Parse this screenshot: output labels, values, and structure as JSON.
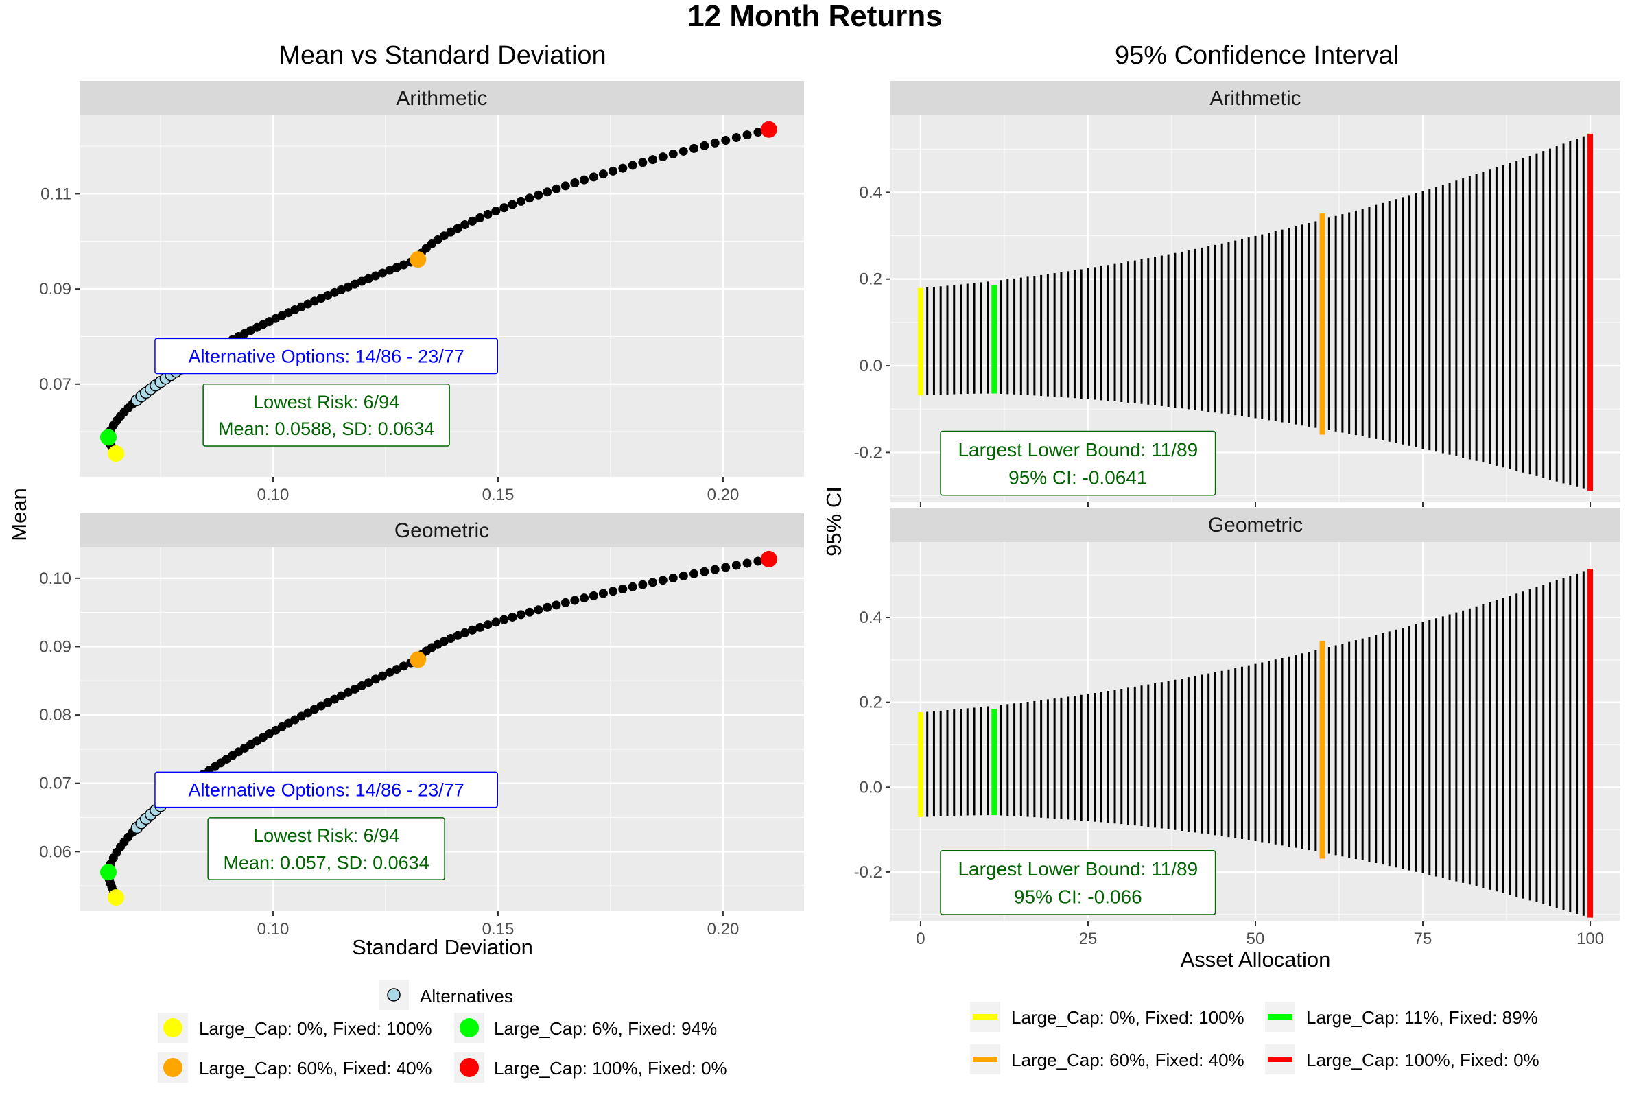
{
  "title": "12 Month Returns",
  "left": {
    "title": "Mean vs Standard Deviation",
    "xlabel": "Standard Deviation",
    "ylabel": "Mean",
    "legend": {
      "alternatives": "Alternatives",
      "items": [
        {
          "label": "Large_Cap: 0%,  Fixed: 100%",
          "color": "#ffff00"
        },
        {
          "label": "Large_Cap: 6%,  Fixed: 94%",
          "color": "#00ff00"
        },
        {
          "label": "Large_Cap: 60%,  Fixed: 40%",
          "color": "#ffa500"
        },
        {
          "label": "Large_Cap: 100%,  Fixed: 0%",
          "color": "#ff0000"
        }
      ]
    }
  },
  "right": {
    "title": "95% Confidence Interval",
    "xlabel": "Asset Allocation",
    "ylabel": "95% CI",
    "legend": {
      "items": [
        {
          "label": "Large_Cap: 0%,  Fixed: 100%",
          "color": "#ffff00"
        },
        {
          "label": "Large_Cap: 11%,  Fixed: 89%",
          "color": "#00ff00"
        },
        {
          "label": "Large_Cap: 60%,  Fixed: 40%",
          "color": "#ffa500"
        },
        {
          "label": "Large_Cap: 100%,  Fixed: 0%",
          "color": "#ff0000"
        }
      ]
    }
  },
  "chart_data": [
    {
      "type": "scatter",
      "panel": "Arithmetic",
      "title": "Mean vs Standard Deviation",
      "xlabel": "Standard Deviation",
      "ylabel": "Mean",
      "xlim": [
        0.057,
        0.218
      ],
      "ylim": [
        0.0505,
        0.1265
      ],
      "xticks": [
        "0.10",
        "0.15",
        "0.20"
      ],
      "yticks": [
        "0.07",
        "0.09",
        "0.11"
      ],
      "curve": {
        "allocations": [
          0,
          100
        ],
        "sd_start": 0.0651,
        "sd_min": 0.0634,
        "sd_end": 0.2102,
        "mean_start": 0.0554,
        "mean_end": 0.1235
      },
      "highlights": [
        {
          "allocation": 0,
          "sd": 0.0651,
          "mean": 0.0554,
          "color": "#ffff00"
        },
        {
          "allocation": 6,
          "sd": 0.0634,
          "mean": 0.0588,
          "color": "#00ff00"
        },
        {
          "allocation": 60,
          "sd": 0.1322,
          "mean": 0.0962,
          "color": "#ffa500"
        },
        {
          "allocation": 100,
          "sd": 0.2102,
          "mean": 0.1235,
          "color": "#ff0000"
        }
      ],
      "alternatives_range": [
        14,
        23
      ],
      "annotations": {
        "alternatives": "Alternative Options: 14/86 - 23/77",
        "risk_line1": "Lowest Risk: 6/94",
        "risk_line2": "Mean: 0.0588, SD: 0.0634"
      }
    },
    {
      "type": "scatter",
      "panel": "Geometric",
      "title": "Mean vs Standard Deviation",
      "xlabel": "Standard Deviation",
      "ylabel": "Mean",
      "xlim": [
        0.057,
        0.218
      ],
      "ylim": [
        0.0513,
        0.1045
      ],
      "xticks": [
        "0.10",
        "0.15",
        "0.20"
      ],
      "yticks": [
        "0.06",
        "0.07",
        "0.08",
        "0.09",
        "0.10"
      ],
      "curve": {
        "allocations": [
          0,
          100
        ],
        "sd_start": 0.0651,
        "sd_min": 0.0634,
        "sd_end": 0.2102,
        "mean_start": 0.0533,
        "mean_end": 0.1028
      },
      "highlights": [
        {
          "allocation": 0,
          "sd": 0.0651,
          "mean": 0.0533,
          "color": "#ffff00"
        },
        {
          "allocation": 6,
          "sd": 0.0634,
          "mean": 0.057,
          "color": "#00ff00"
        },
        {
          "allocation": 60,
          "sd": 0.1322,
          "mean": 0.0881,
          "color": "#ffa500"
        },
        {
          "allocation": 100,
          "sd": 0.2102,
          "mean": 0.1028,
          "color": "#ff0000"
        }
      ],
      "alternatives_range": [
        14,
        23
      ],
      "annotations": {
        "alternatives": "Alternative Options: 14/86 - 23/77",
        "risk_line1": "Lowest Risk: 6/94",
        "risk_line2": "Mean: 0.057, SD: 0.0634"
      }
    },
    {
      "type": "bar",
      "subtype": "range",
      "panel": "Arithmetic",
      "title": "95% Confidence Interval",
      "xlabel": "Asset Allocation",
      "ylabel": "95% CI",
      "xlim": [
        -4.5,
        104.5
      ],
      "ylim": [
        -0.315,
        0.578
      ],
      "xticks": [
        "0",
        "25",
        "50",
        "75",
        "100"
      ],
      "yticks": [
        "-0.2",
        "0.0",
        "0.2",
        "0.4"
      ],
      "ranges": {
        "allocations": [
          0,
          100
        ],
        "lower_start": -0.0686,
        "lower_min_at": 11,
        "lower_min": -0.0641,
        "lower_end": -0.2885,
        "upper_start": 0.1794,
        "upper_end": 0.5354
      },
      "highlights": [
        {
          "allocation": 0,
          "lower": -0.0686,
          "upper": 0.1794,
          "color": "#ffff00"
        },
        {
          "allocation": 11,
          "lower": -0.0641,
          "upper": 0.1865,
          "color": "#00ff00"
        },
        {
          "allocation": 60,
          "lower": -0.159,
          "upper": 0.3514,
          "color": "#ffa500"
        },
        {
          "allocation": 100,
          "lower": -0.2885,
          "upper": 0.5354,
          "color": "#ff0000"
        }
      ],
      "annotations": {
        "line1": "Largest Lower Bound: 11/89",
        "line2": "95% CI: -0.0641"
      }
    },
    {
      "type": "bar",
      "subtype": "range",
      "panel": "Geometric",
      "title": "95% Confidence Interval",
      "xlabel": "Asset Allocation",
      "ylabel": "95% CI",
      "xlim": [
        -4.5,
        104.5
      ],
      "ylim": [
        -0.315,
        0.578
      ],
      "xticks": [
        "0",
        "25",
        "50",
        "75",
        "100"
      ],
      "yticks": [
        "-0.2",
        "0.0",
        "0.2",
        "0.4"
      ],
      "ranges": {
        "allocations": [
          0,
          100
        ],
        "lower_start": -0.0705,
        "lower_min_at": 11,
        "lower_min": -0.066,
        "lower_end": -0.308,
        "upper_start": 0.1765,
        "upper_end": 0.5148
      },
      "highlights": [
        {
          "allocation": 0,
          "lower": -0.0705,
          "upper": 0.1765,
          "color": "#ffff00"
        },
        {
          "allocation": 11,
          "lower": -0.066,
          "upper": 0.1845,
          "color": "#00ff00"
        },
        {
          "allocation": 60,
          "lower": -0.1685,
          "upper": 0.3444,
          "color": "#ffa500"
        },
        {
          "allocation": 100,
          "lower": -0.308,
          "upper": 0.5148,
          "color": "#ff0000"
        }
      ],
      "annotations": {
        "line1": "Largest Lower Bound: 11/89",
        "line2": "95% CI: -0.066"
      }
    }
  ]
}
